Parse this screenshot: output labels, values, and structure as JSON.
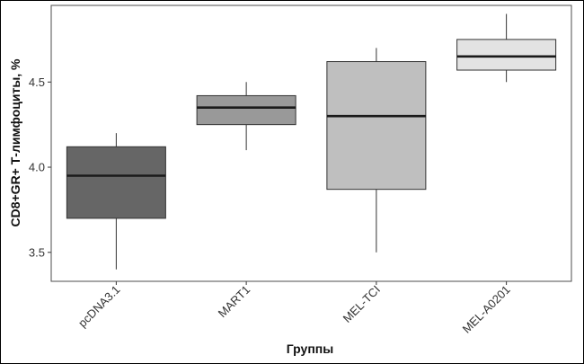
{
  "chart_data": {
    "type": "boxplot",
    "xlabel": "Группы",
    "ylabel": "CD8+GR+ Т-лимфоциты, %",
    "ylim": [
      3.33,
      4.95
    ],
    "yticks": [
      3.5,
      4.0,
      4.5
    ],
    "ytick_labels": [
      "3.5",
      "4.0",
      "4.5"
    ],
    "grid": false,
    "categories": [
      "pcDNA3.1",
      "MART1",
      "MEL-TCI",
      "MEL-A0201"
    ],
    "boxes": [
      {
        "category": "pcDNA3.1",
        "whisker_low": 3.4,
        "q1": 3.7,
        "median": 3.95,
        "q3": 4.12,
        "whisker_high": 4.2,
        "fill": "#666666"
      },
      {
        "category": "MART1",
        "whisker_low": 4.1,
        "q1": 4.25,
        "median": 4.35,
        "q3": 4.42,
        "whisker_high": 4.5,
        "fill": "#999999"
      },
      {
        "category": "MEL-TCI",
        "whisker_low": 3.5,
        "q1": 3.87,
        "median": 4.3,
        "q3": 4.62,
        "whisker_high": 4.7,
        "fill": "#bfbfbf"
      },
      {
        "category": "MEL-A0201",
        "whisker_low": 4.5,
        "q1": 4.57,
        "median": 4.65,
        "q3": 4.75,
        "whisker_high": 4.9,
        "fill": "#e3e3e3"
      }
    ]
  }
}
